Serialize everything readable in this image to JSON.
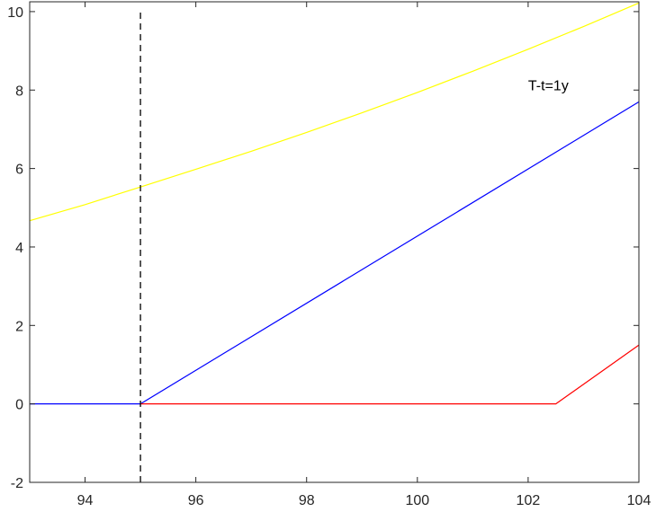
{
  "chart_data": {
    "type": "line",
    "title": "",
    "xlabel": "",
    "ylabel": "",
    "xlim": [
      93,
      104
    ],
    "ylim": [
      -2,
      10.25
    ],
    "x_ticks": [
      94,
      96,
      98,
      100,
      102,
      104
    ],
    "y_ticks": [
      -2,
      0,
      2,
      4,
      6,
      8,
      10
    ],
    "grid": false,
    "series": [
      {
        "color": "#ffff00",
        "x": [
          93,
          94,
          95,
          96,
          97,
          98,
          99,
          100,
          101,
          102,
          103,
          104
        ],
        "y": [
          4.67,
          5.08,
          5.53,
          5.98,
          6.44,
          6.92,
          7.42,
          7.94,
          8.48,
          9.04,
          9.62,
          10.22
        ]
      },
      {
        "color": "#0000ff",
        "x": [
          93,
          95,
          104
        ],
        "y": [
          0,
          0,
          7.7
        ]
      },
      {
        "color": "#ff0000",
        "x": [
          95,
          102.5,
          104
        ],
        "y": [
          0,
          0,
          1.5
        ]
      }
    ],
    "reference_lines": [
      {
        "x": 95,
        "y_range": [
          -2,
          10
        ],
        "style": "dashed",
        "color": "#000000"
      }
    ],
    "annotations": [
      {
        "text": "T-t=1y",
        "x": 102,
        "y": 8
      }
    ]
  }
}
